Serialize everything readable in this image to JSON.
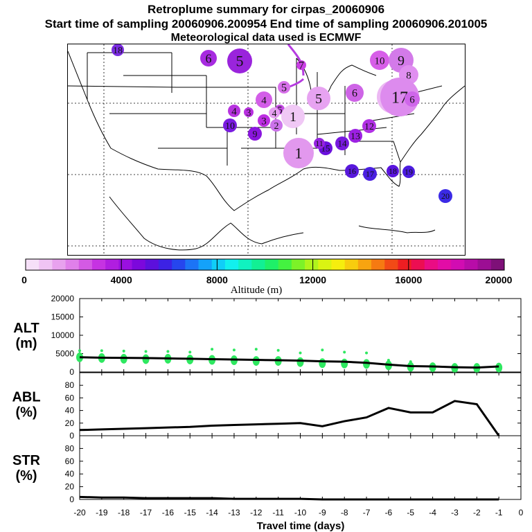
{
  "header": {
    "title": "Retroplume summary for cirpas_20060906",
    "sampling_line": "Start time of sampling 20060906.200954     End time of sampling 20060906.201005",
    "met_line": "Meteorological data used is ECMWF"
  },
  "colorbar": {
    "ticks": [
      "0",
      "4000",
      "8000",
      "12000",
      "16000",
      "20000"
    ],
    "label": "Altitude  (m)",
    "colors": [
      "#f6e0f8",
      "#f0c4f4",
      "#e8a2ee",
      "#e080ea",
      "#d45ae4",
      "#c633e2",
      "#b01ee0",
      "#9a10e0",
      "#7c08dc",
      "#5c10dc",
      "#3c22e4",
      "#2646ee",
      "#1c74f6",
      "#14a2fa",
      "#10cef8",
      "#12f0ee",
      "#10f2c0",
      "#12f094",
      "#1ef068",
      "#44f240",
      "#7cf228",
      "#b0f41c",
      "#daf412",
      "#f6ee0e",
      "#f8cc0e",
      "#f8a410",
      "#f67a12",
      "#f24a16",
      "#ee1e22",
      "#ec0e52",
      "#ea0c84",
      "#e20ca6",
      "#d20cb2",
      "#b80ca8",
      "#9c0e94",
      "#7e1078"
    ]
  },
  "map": {
    "plume_labels": [
      {
        "day": "18",
        "color": "#7a2ce0"
      },
      {
        "day": "6",
        "color": "#a72be0"
      },
      {
        "day": "5",
        "color": "#9a24dc"
      },
      {
        "day": "10",
        "color": "#d75ee8"
      },
      {
        "day": "9",
        "color": "#d37ae9"
      },
      {
        "day": "8",
        "color": "#e08ff0"
      },
      {
        "day": "7",
        "color": "#ca3fe5"
      },
      {
        "day": "6",
        "color": "#ce64e6"
      },
      {
        "day": "5",
        "color": "#e7a3f1"
      },
      {
        "day": "5",
        "color": "#d770ea"
      },
      {
        "day": "6",
        "color": "#ecb8f3"
      },
      {
        "day": "4",
        "color": "#d35ee8"
      },
      {
        "day": "5",
        "color": "#c34be3"
      },
      {
        "day": "4",
        "color": "#e6a0f1"
      },
      {
        "day": "4",
        "color": "#b733df"
      },
      {
        "day": "3",
        "color": "#b830e0"
      },
      {
        "day": "3",
        "color": "#bd2ee2"
      },
      {
        "day": "2",
        "color": "#cb72ea"
      },
      {
        "day": "1",
        "color": "#f0c8f5"
      },
      {
        "day": "1",
        "color": "#e298ee"
      },
      {
        "day": "10",
        "color": "#7a1ce0"
      },
      {
        "day": "9",
        "color": "#8a16de"
      },
      {
        "day": "12",
        "color": "#b030e3"
      },
      {
        "day": "13",
        "color": "#9c20e2"
      },
      {
        "day": "14",
        "color": "#7818df"
      },
      {
        "day": "15",
        "color": "#6a10dc"
      },
      {
        "day": "11",
        "color": "#9624e0"
      },
      {
        "day": "16",
        "color": "#5818dc"
      },
      {
        "day": "17",
        "color": "#4a20e0"
      },
      {
        "day": "18",
        "color": "#5a14df"
      },
      {
        "day": "19",
        "color": "#4c1ce0"
      },
      {
        "day": "20",
        "color": "#3b2ae6"
      },
      {
        "day": "17",
        "color": "#dd8bee"
      },
      {
        "day": "6",
        "color": "#cf66ea"
      }
    ]
  },
  "chart_data": [
    {
      "type": "scatter",
      "panel": "ALT",
      "ylabel": "ALT\n(m)",
      "ylabel_lines": [
        "ALT",
        "(m)"
      ],
      "ylim": [
        0,
        20000
      ],
      "yticks": [
        "20000",
        "15000",
        "10000",
        "5000",
        "0"
      ],
      "x": [
        -20,
        -19,
        -18,
        -17,
        -16,
        -15,
        -14,
        -13,
        -12,
        -11,
        -10,
        -9,
        -8,
        -7,
        -6,
        -5,
        -4,
        -3,
        -2,
        -1
      ],
      "mean_line": [
        4000,
        3900,
        3850,
        3800,
        3700,
        3600,
        3500,
        3400,
        3300,
        3200,
        3100,
        2900,
        2800,
        2500,
        2000,
        1600,
        1500,
        1300,
        1200,
        1500
      ],
      "points_center": [
        4000,
        3800,
        3600,
        3500,
        3600,
        3400,
        3300,
        3200,
        3000,
        3000,
        2700,
        2400,
        2300,
        2200,
        1800,
        1400,
        1300,
        1100,
        1100,
        1200
      ],
      "points_high": [
        5800,
        5800,
        5700,
        5600,
        5600,
        5400,
        6200,
        6000,
        6200,
        5900,
        5200,
        6000,
        5400,
        5200,
        3200,
        2800,
        2200,
        2000,
        1600,
        1500
      ]
    },
    {
      "type": "line",
      "panel": "ABL",
      "ylabel": "ABL\n(%)",
      "ylabel_lines": [
        "ABL",
        "(%)"
      ],
      "ylim": [
        0,
        100
      ],
      "yticks": [
        "80",
        "60",
        "40",
        "20",
        "0"
      ],
      "x": [
        -20,
        -19,
        -18,
        -17,
        -16,
        -15,
        -14,
        -13,
        -12,
        -11,
        -10,
        -9,
        -8,
        -7,
        -6,
        -5,
        -4,
        -3,
        -2,
        -1
      ],
      "values": [
        9,
        10,
        11,
        12,
        13,
        14,
        16,
        17,
        18,
        19,
        20,
        15,
        23,
        29,
        44,
        37,
        37,
        55,
        50,
        0
      ]
    },
    {
      "type": "line",
      "panel": "STR",
      "ylabel": "STR\n(%)",
      "ylabel_lines": [
        "STR",
        "(%)"
      ],
      "ylim": [
        0,
        100
      ],
      "yticks": [
        "80",
        "60",
        "40",
        "20",
        "0"
      ],
      "x": [
        -20,
        -19,
        -18,
        -17,
        -16,
        -15,
        -14,
        -13,
        -12,
        -11,
        -10,
        -9,
        -8,
        -7,
        -6,
        -5,
        -4,
        -3,
        -2,
        -1
      ],
      "values": [
        4,
        3,
        3,
        2,
        2,
        2,
        2,
        1,
        1,
        1,
        1,
        0,
        0,
        0,
        0,
        0,
        0,
        0,
        0,
        0
      ]
    }
  ],
  "xaxis": {
    "ticks": [
      "-20",
      "-19",
      "-18",
      "-17",
      "-16",
      "-15",
      "-14",
      "-13",
      "-12",
      "-11",
      "-10",
      "-9",
      "-8",
      "-7",
      "-6",
      "-5",
      "-4",
      "-3",
      "-2",
      "-1",
      "0"
    ],
    "label": "Travel time (days)"
  }
}
